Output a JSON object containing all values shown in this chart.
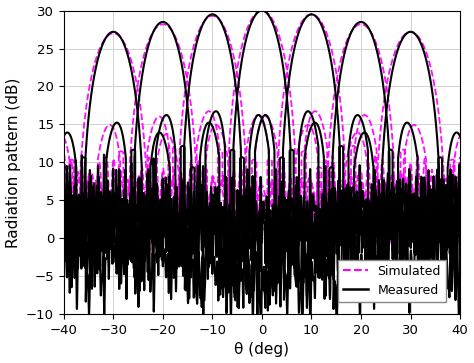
{
  "title": "",
  "xlabel": "θ (deg)",
  "ylabel": "Radiation pattern (dB)",
  "xlim": [
    -40,
    40
  ],
  "ylim": [
    -10,
    30
  ],
  "xticks": [
    -40,
    -30,
    -20,
    -10,
    0,
    10,
    20,
    30,
    40
  ],
  "yticks": [
    -10,
    -5,
    0,
    5,
    10,
    15,
    20,
    25,
    30
  ],
  "sim_beam_angles": [
    -30,
    -20,
    -10,
    0,
    10,
    20,
    30
  ],
  "sim_peaks": [
    27,
    28.2,
    29.3,
    30,
    29.5,
    28.2,
    27.2
  ],
  "meas_beam_angles": [
    -30,
    -20,
    -10,
    0,
    10,
    20,
    30
  ],
  "meas_peaks": [
    27.2,
    28.5,
    29.5,
    30,
    29.5,
    28.5,
    27.2
  ],
  "sim_color": "#FF00FF",
  "meas_color": "#000000",
  "background_color": "#ffffff",
  "grid_color": "#cccccc",
  "legend_labels": [
    "Simulated",
    "Measured"
  ],
  "fig_width": 4.74,
  "fig_height": 3.63,
  "dpi": 100
}
